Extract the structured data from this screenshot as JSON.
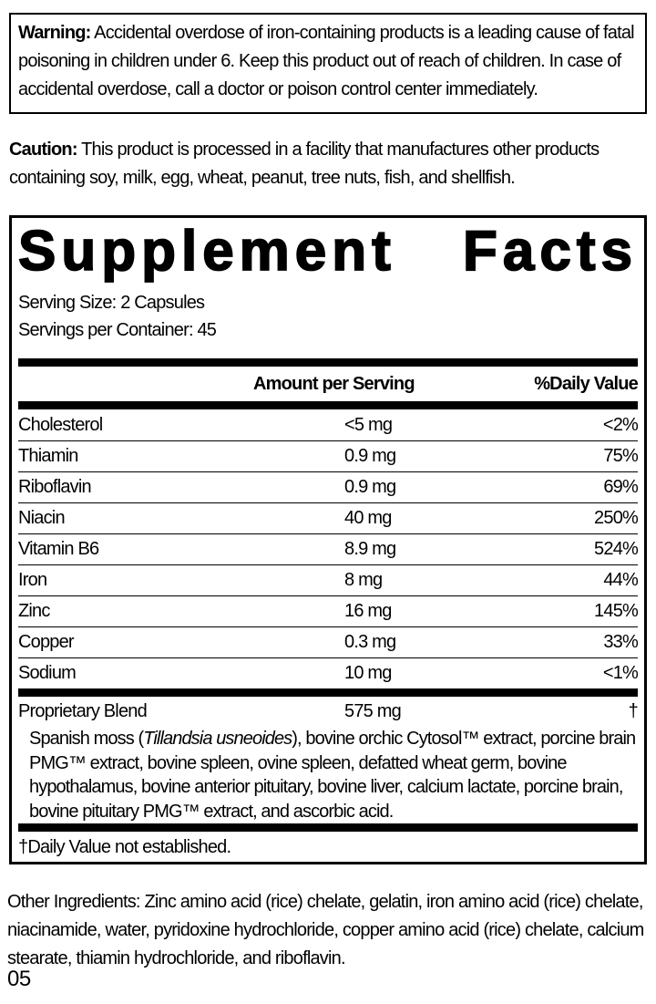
{
  "warning": {
    "label": "Warning:",
    "text": "Accidental overdose of iron-containing products is a leading cause of fatal poisoning in children under 6. Keep this product out of reach of children. In case of accidental overdose, call a doctor or poison control center immediately."
  },
  "caution": {
    "label": "Caution:",
    "text": "This product is processed in a facility that manufactures other products containing soy, milk, egg, wheat, peanut, tree nuts, fish, and shellfish."
  },
  "panel": {
    "title_words": [
      "Supplement",
      "Facts"
    ],
    "serving_size": "Serving Size: 2 Capsules",
    "servings_per_container": "Servings per Container: 45",
    "col_amount": "Amount per Serving",
    "col_dv": "%Daily Value",
    "rows": [
      {
        "name": "Cholesterol",
        "amount": "<5 mg",
        "dv": "<2%"
      },
      {
        "name": "Thiamin",
        "amount": "0.9 mg",
        "dv": "75%"
      },
      {
        "name": "Riboflavin",
        "amount": "0.9 mg",
        "dv": "69%"
      },
      {
        "name": "Niacin",
        "amount": "40 mg",
        "dv": "250%"
      },
      {
        "name": "Vitamin B6",
        "amount": "8.9 mg",
        "dv": "524%"
      },
      {
        "name": "Iron",
        "amount": "8 mg",
        "dv": "44%"
      },
      {
        "name": "Zinc",
        "amount": "16 mg",
        "dv": "145%"
      },
      {
        "name": "Copper",
        "amount": "0.3 mg",
        "dv": "33%"
      },
      {
        "name": "Sodium",
        "amount": "10 mg",
        "dv": "<1%"
      }
    ],
    "blend": {
      "name": "Proprietary Blend",
      "amount": "575 mg",
      "dv": "†"
    },
    "blend_description_segments": [
      {
        "t": "Spanish moss (",
        "i": false
      },
      {
        "t": "Tillandsia usneoides",
        "i": true
      },
      {
        "t": "), bovine orchic Cytosol™ extract, porcine brain PMG™ extract, bovine spleen, ovine spleen, defatted wheat germ, bovine hypothalamus, bovine anterior pituitary, bovine liver, calcium lactate, porcine brain, bovine pituitary PMG™ extract, and ascorbic acid.",
        "i": false
      }
    ],
    "footnote": "†Daily Value not established."
  },
  "other_ingredients": {
    "label": "Other Ingredients:",
    "text": "Zinc amino acid (rice) chelate, gelatin, iron amino acid (rice) chelate, niacinamide, water, pyridoxine hydrochloride, copper amino acid (rice) chelate, calcium stearate, thiamin hydrochloride, and riboflavin."
  },
  "footer": {
    "code": "05"
  }
}
